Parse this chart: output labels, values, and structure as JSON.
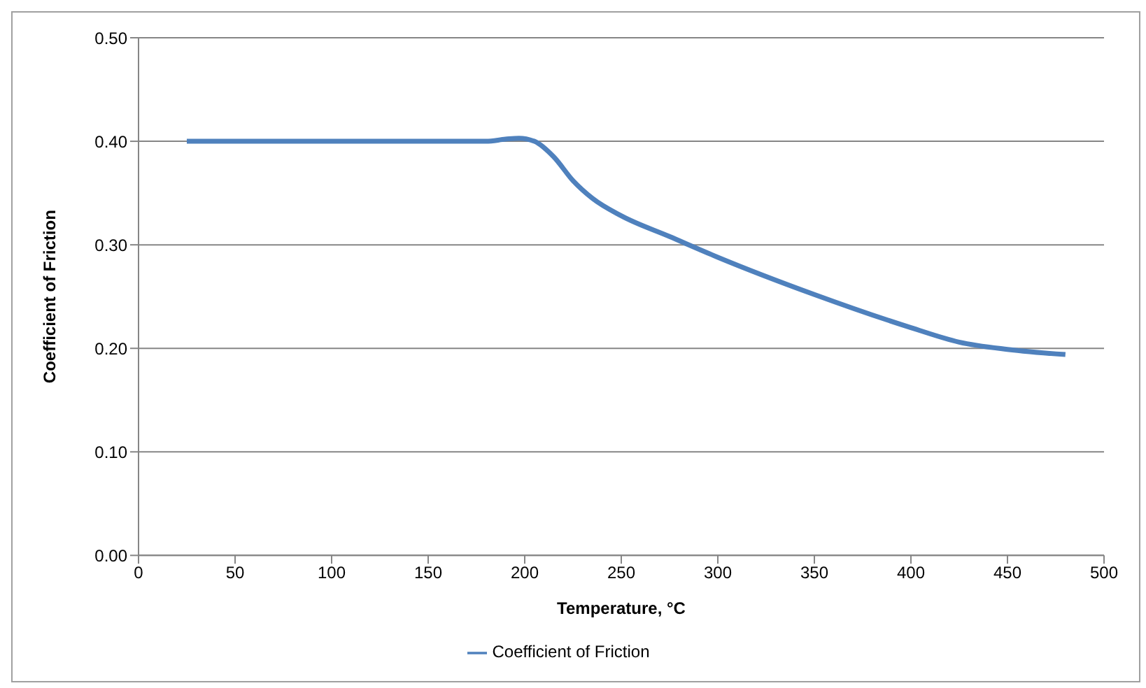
{
  "chart_data": {
    "type": "line",
    "xlabel": "Temperature, °C",
    "ylabel": "Coefficient of Friction",
    "xlim": [
      0,
      500
    ],
    "xticks": [
      0,
      50,
      100,
      150,
      200,
      250,
      300,
      350,
      400,
      450,
      500
    ],
    "ylim": [
      0,
      0.5
    ],
    "yticks": [
      {
        "value": 0,
        "label": "0.00"
      },
      {
        "value": 0.1,
        "label": "0.10"
      },
      {
        "value": 0.2,
        "label": "0.20"
      },
      {
        "value": 0.3,
        "label": "0.30"
      },
      {
        "value": 0.4,
        "label": "0.40"
      },
      {
        "value": 0.5,
        "label": "0.50"
      }
    ],
    "grid": "y",
    "legend": "bottom",
    "marker": "none",
    "line_style": "solid",
    "x": [
      25,
      50,
      100,
      150,
      180,
      190,
      197,
      205,
      215,
      225,
      235,
      250,
      275,
      300,
      350,
      400,
      425,
      450,
      480
    ],
    "series": [
      {
        "name": "Coefficient of Friction",
        "color": "#4f81bd",
        "values": [
          0.4,
          0.4,
          0.4,
          0.4,
          0.4,
          0.402,
          0.403,
          0.4,
          0.385,
          0.362,
          0.345,
          0.328,
          0.308,
          0.288,
          0.252,
          0.22,
          0.206,
          0.199,
          0.194
        ]
      }
    ]
  }
}
